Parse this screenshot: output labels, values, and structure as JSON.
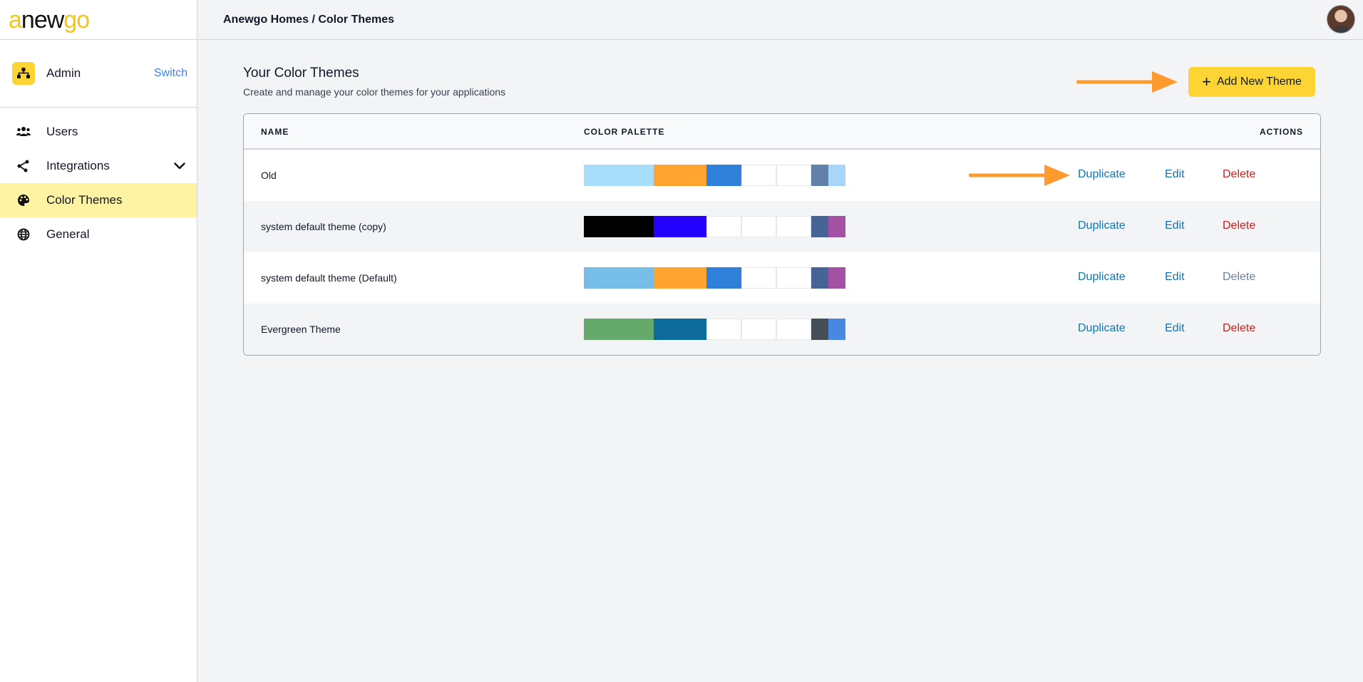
{
  "logo": {
    "part1": "a",
    "part2": "new",
    "part3": "go"
  },
  "account": {
    "name": "Admin",
    "switch_label": "Switch",
    "icon": "sitemap-icon"
  },
  "nav": [
    {
      "label": "Users",
      "icon": "users-icon",
      "active": false
    },
    {
      "label": "Integrations",
      "icon": "share-nodes-icon",
      "active": false,
      "expandable": true
    },
    {
      "label": "Color Themes",
      "icon": "palette-icon",
      "active": true
    },
    {
      "label": "General",
      "icon": "globe-icon",
      "active": false
    }
  ],
  "header": {
    "breadcrumb": "Anewgo Homes / Color Themes"
  },
  "page": {
    "title": "Your Color Themes",
    "subtitle": "Create and manage your color themes for your applications",
    "add_button": "Add New Theme"
  },
  "table": {
    "columns": {
      "name": "NAME",
      "palette": "COLOR PALETTE",
      "actions": "ACTIONS"
    },
    "actions": {
      "duplicate": "Duplicate",
      "edit": "Edit",
      "delete": "Delete"
    },
    "rows": [
      {
        "name": "Old",
        "palette": [
          "#a8ddfb",
          "#ffa42f",
          "#2f80d8",
          "#ffffff",
          "#ffffff",
          "#6281a9",
          "#a8d6fb"
        ],
        "delete_enabled": true
      },
      {
        "name": "system default theme (copy)",
        "palette": [
          "#000000",
          "#2400ff",
          "#ffffff",
          "#ffffff",
          "#ffffff",
          "#466496",
          "#a351a3"
        ],
        "delete_enabled": true
      },
      {
        "name": "system default theme (Default)",
        "palette": [
          "#76bde8",
          "#ffa42f",
          "#2f80d8",
          "#ffffff",
          "#ffffff",
          "#466496",
          "#a351a3"
        ],
        "delete_enabled": false
      },
      {
        "name": "Evergreen Theme",
        "palette": [
          "#65a96b",
          "#0c6b98",
          "#ffffff",
          "#ffffff",
          "#ffffff",
          "#474d55",
          "#4788e0"
        ],
        "delete_enabled": true
      }
    ]
  },
  "colors": {
    "accent": "#fcd535",
    "active_nav": "#fef3a2",
    "link": "#0e74b8",
    "danger": "#c81e1e",
    "arrow": "#ff9a2e"
  }
}
